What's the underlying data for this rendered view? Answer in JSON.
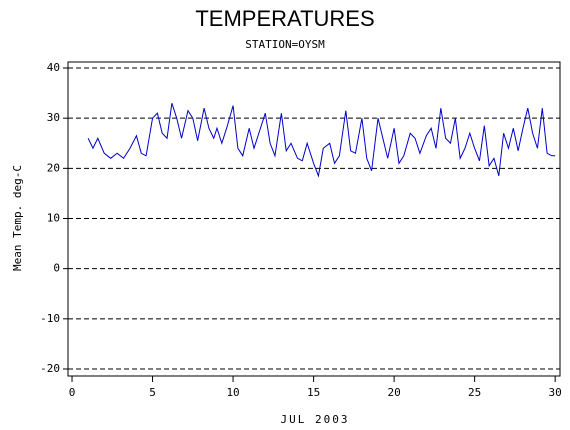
{
  "chart_data": {
    "type": "line",
    "title": "TEMPERATURES",
    "subtitle": "STATION=OYSM",
    "x_label": "JUL 2003",
    "y_label": "Mean Temp. deg-C",
    "x": [
      1.0,
      1.3,
      1.6,
      2.0,
      2.4,
      2.8,
      3.2,
      3.6,
      4.0,
      4.3,
      4.6,
      5.0,
      5.3,
      5.6,
      5.9,
      6.2,
      6.5,
      6.8,
      7.2,
      7.5,
      7.8,
      8.2,
      8.5,
      8.8,
      9.0,
      9.3,
      9.6,
      10.0,
      10.3,
      10.6,
      11.0,
      11.3,
      11.6,
      12.0,
      12.3,
      12.6,
      13.0,
      13.3,
      13.6,
      14.0,
      14.3,
      14.6,
      15.0,
      15.3,
      15.6,
      16.0,
      16.3,
      16.6,
      17.0,
      17.3,
      17.6,
      18.0,
      18.3,
      18.6,
      19.0,
      19.3,
      19.6,
      20.0,
      20.3,
      20.6,
      21.0,
      21.3,
      21.6,
      22.0,
      22.3,
      22.6,
      22.9,
      23.2,
      23.5,
      23.8,
      24.1,
      24.4,
      24.7,
      25.0,
      25.3,
      25.6,
      25.9,
      26.2,
      26.5,
      26.8,
      27.1,
      27.4,
      27.7,
      28.0,
      28.3,
      28.6,
      28.9,
      29.2,
      29.5,
      29.8,
      30.0
    ],
    "series": [
      {
        "name": "Mean Temp",
        "color": "#0000cc",
        "values": [
          26,
          24,
          26,
          23,
          22,
          23,
          22,
          24,
          26.5,
          23,
          22.5,
          30,
          31,
          27,
          26,
          33,
          30,
          26,
          31.5,
          30,
          25.5,
          32,
          28,
          26,
          28,
          25,
          28,
          32.5,
          24,
          22.5,
          28,
          24,
          27,
          31,
          25,
          22.5,
          31,
          23.5,
          25,
          22,
          21.5,
          25,
          21,
          18.5,
          24,
          25,
          21,
          22.5,
          31.5,
          23.5,
          23,
          30,
          22,
          19.5,
          30,
          26,
          22,
          28,
          21,
          22.5,
          27,
          26,
          23,
          26.5,
          28,
          24,
          32,
          26,
          25,
          30,
          22,
          24,
          27,
          24,
          21.5,
          28.5,
          20.5,
          22,
          18.5,
          27,
          24,
          28,
          23.5,
          28,
          32,
          27,
          24,
          32,
          23,
          22.5,
          22.5
        ]
      }
    ],
    "xlim": [
      -0.25,
      30.3
    ],
    "ylim": [
      -21.4,
      41.2
    ],
    "xticks": [
      0,
      5,
      10,
      15,
      20,
      25,
      30
    ],
    "yticks": [
      -20,
      -10,
      0,
      10,
      20,
      30,
      40
    ],
    "grid": true
  }
}
